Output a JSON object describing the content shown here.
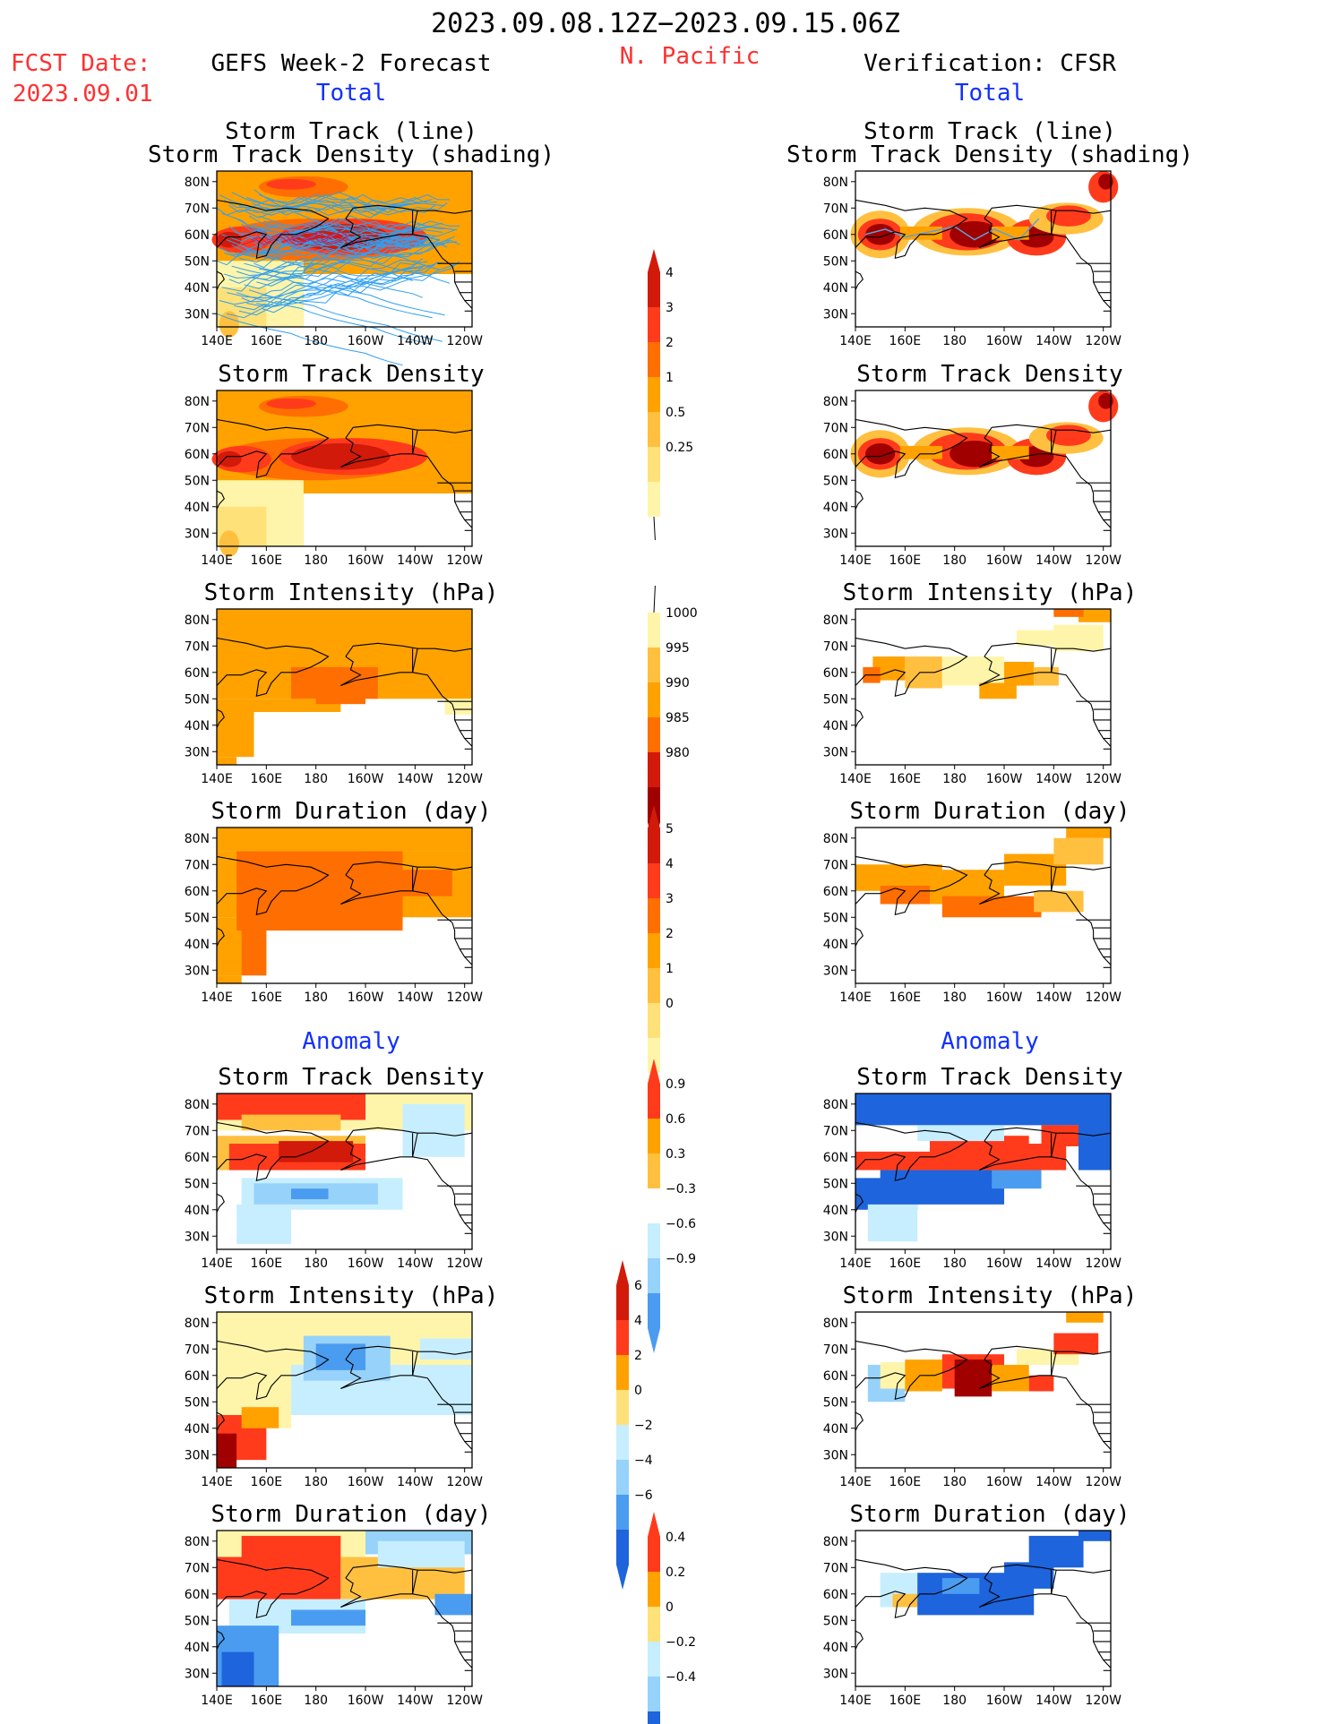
{
  "header": {
    "period": "2023.09.08.12Z−2023.09.15.06Z",
    "fcst_label": "FCST Date:",
    "fcst_date": "2023.09.01",
    "left_title": "GEFS Week-2 Forecast",
    "region": "N. Pacific",
    "right_title": "Verification: CFSR",
    "total_label": "Total",
    "anomaly_label": "Anomaly"
  },
  "axes": {
    "lat_ticks": [
      "80N",
      "70N",
      "60N",
      "50N",
      "40N",
      "30N"
    ],
    "lon_ticks": [
      "140E",
      "160E",
      "180",
      "160W",
      "140W",
      "120W"
    ]
  },
  "panels": {
    "track_line_title_1": "Storm Track (line)",
    "track_line_title_2": "Storm Track Density (shading)",
    "density": "Storm Track Density",
    "intensity": "Storm Intensity (hPa)",
    "duration": "Storm Duration (day)"
  },
  "colorbars": {
    "density_total": [
      "4",
      "3",
      "2",
      "1",
      "0.5",
      "0.25"
    ],
    "intensity_total": [
      "1000",
      "995",
      "990",
      "985",
      "980"
    ],
    "duration_total": [
      "5",
      "4",
      "3",
      "2",
      "1",
      "0"
    ],
    "density_anom": [
      "0.9",
      "0.6",
      "0.3",
      "−0.3",
      "−0.6",
      "−0.9"
    ],
    "intensity_anom": [
      "6",
      "4",
      "2",
      "0",
      "−2",
      "−4",
      "−6"
    ],
    "duration_anom": [
      "0.4",
      "0.2",
      "0",
      "−0.2",
      "−0.4"
    ]
  },
  "colors": {
    "pale_yellow": "#fff5aa",
    "light_yellow": "#ffe17a",
    "gold": "#ffc040",
    "orange": "#ffa200",
    "dark_orange": "#ff6e00",
    "red": "#ff3b1c",
    "dark_red": "#d21a0a",
    "maroon": "#a00000",
    "light_blue": "#c6eeff",
    "sky_blue": "#96d2fa",
    "mid_blue": "#4a9cf0",
    "deep_blue": "#1e64dc",
    "track_line": "#30a0f0",
    "track_line_obs": "#5fa0d8"
  }
}
